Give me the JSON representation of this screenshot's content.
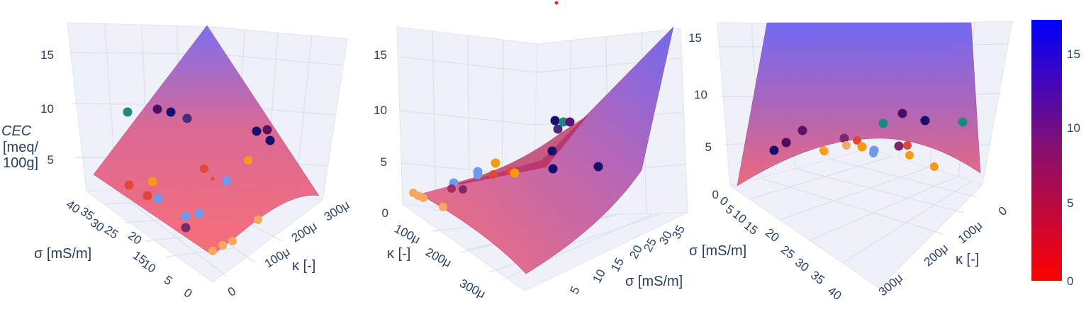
{
  "chart_data": [
    {
      "type": "scatter3d+surface",
      "title": "",
      "z_axis": {
        "title": [
          "CEC",
          "[meq/",
          "100g]"
        ],
        "ticks": [
          "5",
          "10",
          "15"
        ]
      },
      "x_axis": {
        "title": "σ [mS/m]",
        "ticks": [
          "40",
          "35",
          "30",
          "25",
          "20",
          "15",
          "10",
          "5",
          "0"
        ]
      },
      "y_axis": {
        "title": "κ [-]",
        "ticks": [
          "300μ",
          "200μ",
          "100μ",
          "0"
        ]
      },
      "points_sigma_kappa_cec": [
        [
          28,
          0.00012,
          9.5
        ],
        [
          22,
          0.00014,
          10.2
        ],
        [
          18,
          0.00016,
          10.0
        ],
        [
          14,
          0.00018,
          9.3
        ],
        [
          6,
          0.00028,
          8.0
        ],
        [
          8,
          0.00029,
          7.6
        ],
        [
          6,
          0.00029,
          7.2
        ],
        [
          10,
          0.00022,
          5.1
        ],
        [
          25,
          6e-05,
          3.6
        ],
        [
          27,
          5e-05,
          3.0
        ],
        [
          22,
          8e-05,
          2.9
        ],
        [
          20,
          8e-05,
          2.6
        ],
        [
          12,
          0.00012,
          3.2
        ],
        [
          15,
          0.0001,
          4.4
        ],
        [
          14,
          8e-05,
          1.9
        ],
        [
          10,
          0.0001,
          1.9
        ],
        [
          12,
          7e-05,
          1.3
        ],
        [
          4,
          0.00016,
          2.1
        ],
        [
          6,
          7e-05,
          1.2
        ],
        [
          5,
          6e-05,
          1.0
        ],
        [
          4,
          5e-05,
          0.9
        ]
      ]
    },
    {
      "type": "scatter3d+surface",
      "z_axis": {
        "ticks": [
          "0",
          "5",
          "10",
          "15"
        ]
      },
      "x_axis": {
        "title": "σ [mS/m]",
        "ticks": [
          "5",
          "10",
          "15",
          "20",
          "25",
          "30",
          "35"
        ]
      },
      "y_axis": {
        "title": "κ [-]",
        "ticks": [
          "100μ",
          "200μ",
          "300μ"
        ]
      }
    },
    {
      "type": "scatter3d+surface",
      "z_axis": {
        "ticks": [
          "0",
          "5",
          "10",
          "15"
        ]
      },
      "x_axis": {
        "title": "σ [mS/m]",
        "ticks": [
          "0",
          "5",
          "10",
          "15",
          "20",
          "25",
          "30",
          "35",
          "40"
        ]
      },
      "y_axis": {
        "title": "κ [-]",
        "ticks": [
          "0",
          "100μ",
          "200μ",
          "300μ"
        ]
      }
    }
  ],
  "colorbar": {
    "ticks": [
      "0",
      "5",
      "10",
      "15"
    ],
    "range": [
      0,
      17.5
    ],
    "colors": {
      "low": "#ff0000",
      "mid": "#8a1a7a",
      "high": "#0000ff"
    }
  },
  "colors": {
    "grid": "#dfe4ee",
    "pane": "#eef1f7",
    "surface_low": "#f4606a",
    "surface_high": "#7a6cf0",
    "marker_teal": "#1a8a7e",
    "marker_navy": "#150f6e",
    "marker_purple": "#5e0f7a",
    "marker_red": "#e0473a",
    "marker_orange": "#f59a12",
    "marker_lightorange": "#f7a860",
    "marker_lightblue": "#6f99ee"
  }
}
